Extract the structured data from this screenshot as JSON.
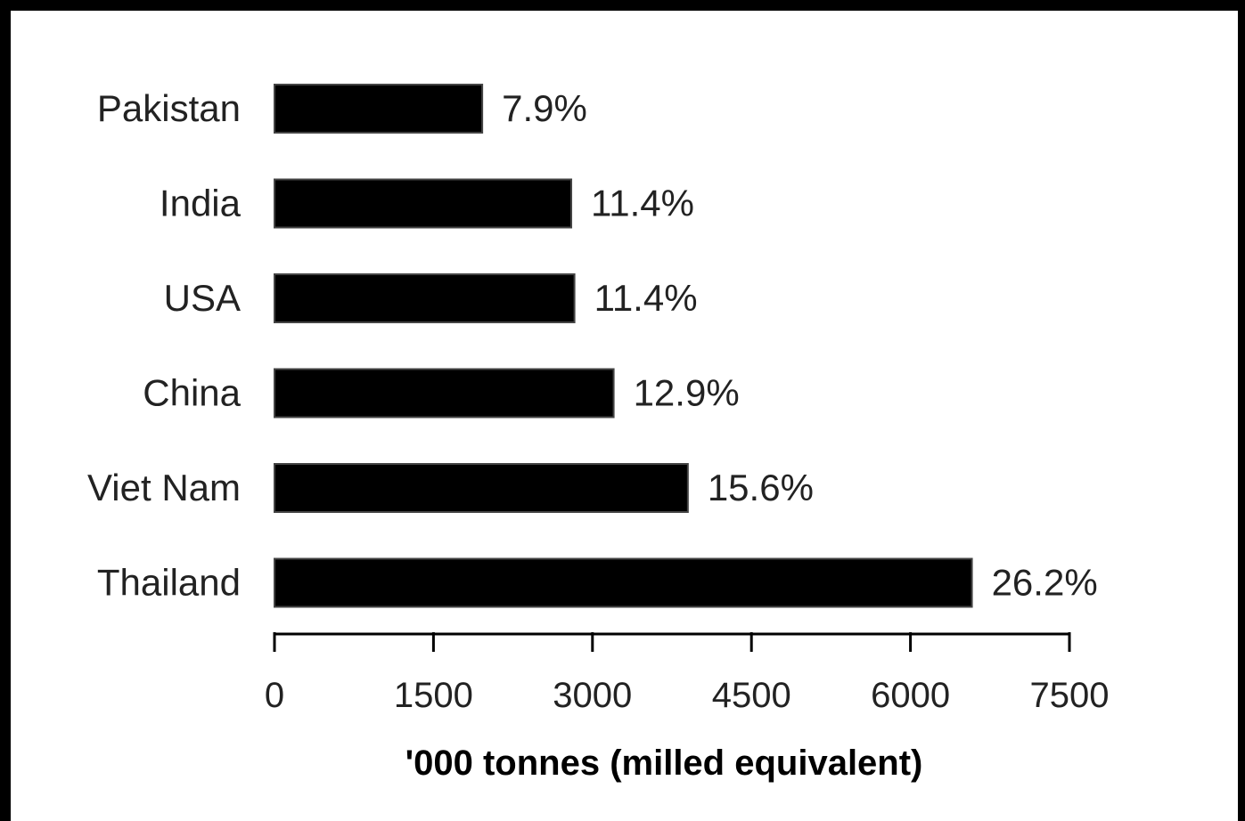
{
  "chart_data": {
    "type": "bar",
    "orientation": "horizontal",
    "categories": [
      "Pakistan",
      "India",
      "USA",
      "China",
      "Viet Nam",
      "Thailand"
    ],
    "values": [
      1960,
      2800,
      2830,
      3200,
      3900,
      6580
    ],
    "data_labels": [
      "7.9%",
      "11.4%",
      "11.4%",
      "12.9%",
      "15.6%",
      "26.2%"
    ],
    "title": "",
    "xlabel": "'000 tonnes (milled equivalent)",
    "ylabel": "",
    "xlim": [
      0,
      7500
    ],
    "xticks": [
      "0",
      "1500",
      "3000",
      "4500",
      "6000",
      "7500"
    ],
    "bar_color": "#000000",
    "grid": false,
    "legend": "none"
  }
}
